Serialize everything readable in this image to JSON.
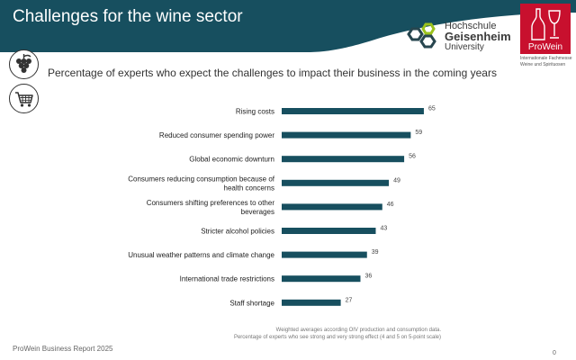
{
  "header": {
    "title": "Challenges for the wine sector",
    "band_color": "#174f5f"
  },
  "logos": {
    "hochschule": {
      "line1": "Hochschule",
      "line2": "Geisenheim",
      "line3": "University",
      "mark_colors": [
        "#27464f",
        "#9bc21d"
      ]
    },
    "prowein": {
      "name": "ProWein",
      "subtitle_line1": "Internationale Fachmesse",
      "subtitle_line2": "Weine und Spirituosen",
      "color": "#c8102e"
    }
  },
  "icons": [
    "grapes-icon",
    "shopping-cart-icon"
  ],
  "chart_data": {
    "type": "bar",
    "orientation": "horizontal",
    "subtitle": "Percentage of experts who expect the challenges to impact their business in the coming years",
    "categories": [
      "Rising costs",
      "Reduced consumer spending power",
      "Global economic downturn",
      "Consumers reducing consumption because of health concerns",
      "Consumers shifting preferences to other beverages",
      "Stricter alcohol policies",
      "Unusual weather patterns and climate change",
      "International trade restrictions",
      "Staff shortage"
    ],
    "values": [
      65,
      59,
      56,
      49,
      46,
      43,
      39,
      36,
      27
    ],
    "xlim": [
      0,
      100
    ],
    "bar_color": "#174f5f",
    "grid": false,
    "data_labels": true
  },
  "footnotes": {
    "line1": "Weighted averages according OIV production and consumption data.",
    "line2": "Percentage of experts who see strong and very strong effect (4 and 5 on 5-point scale)"
  },
  "footer": {
    "source": "ProWein Business Report 2025",
    "page_number": "0"
  }
}
